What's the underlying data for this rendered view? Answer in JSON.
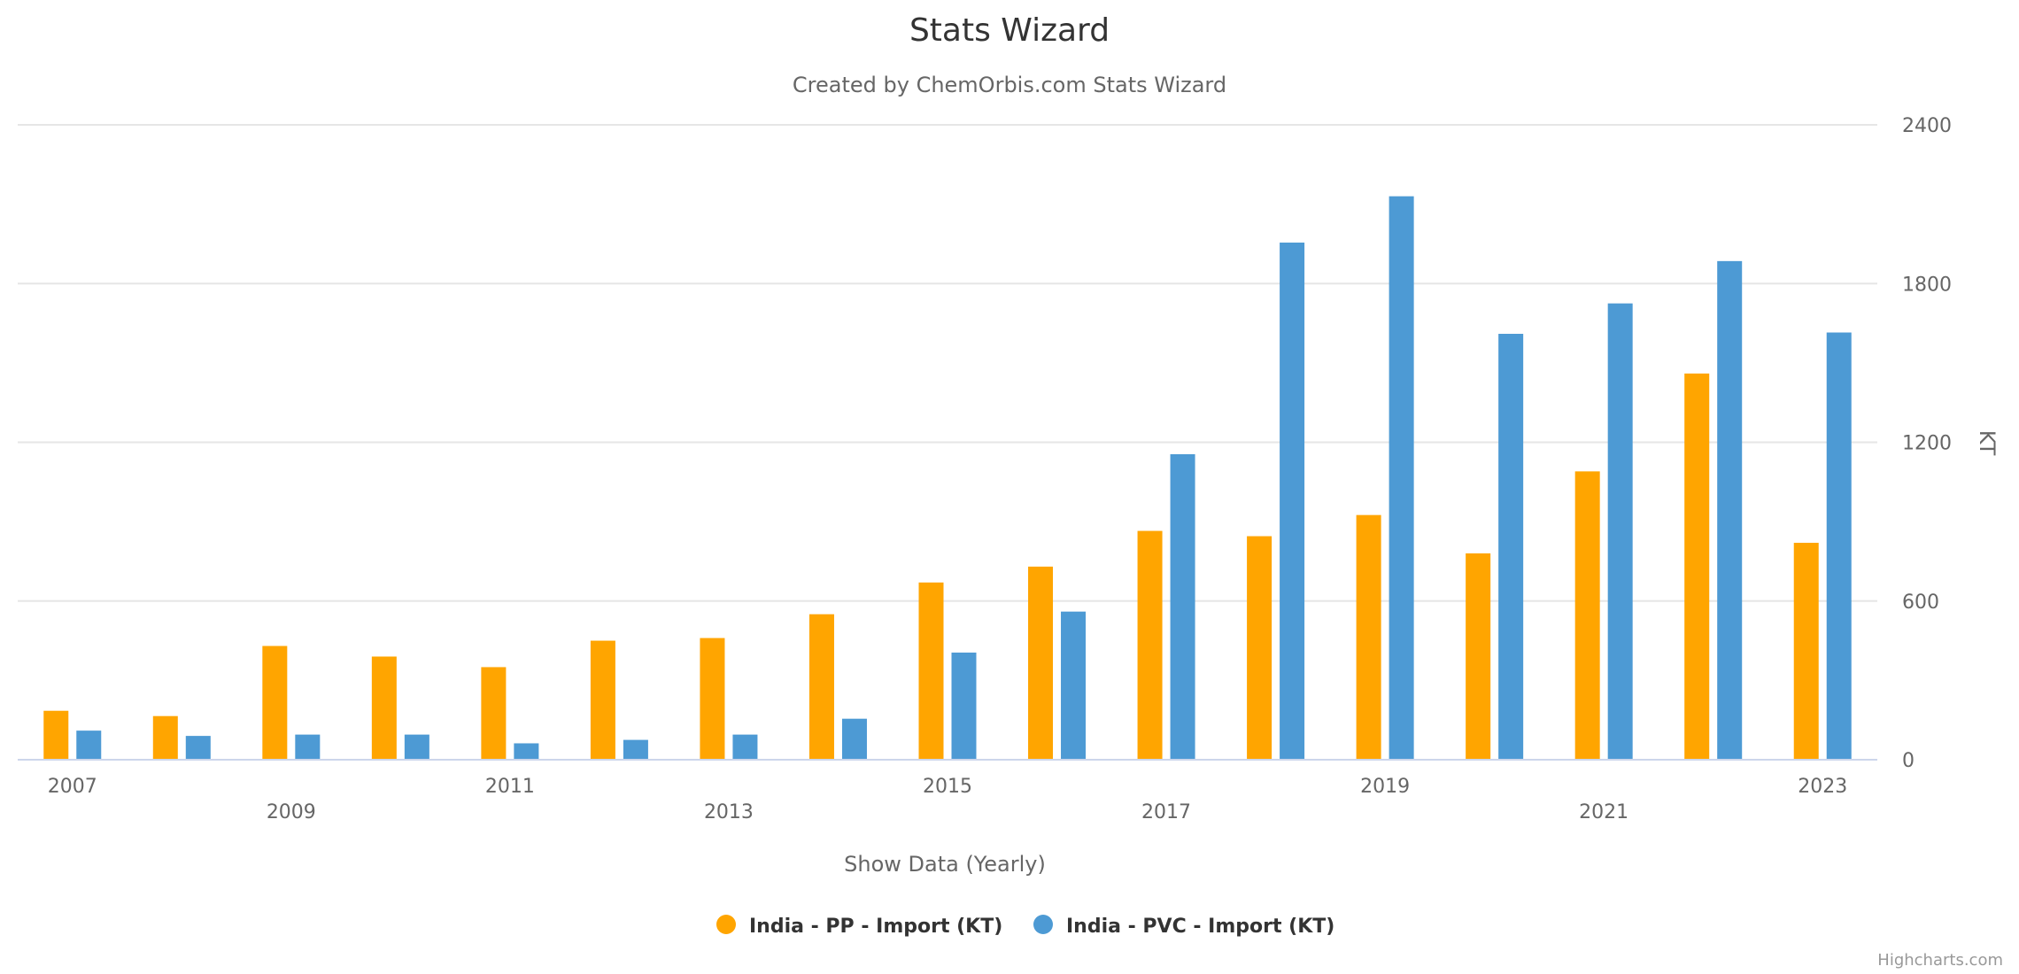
{
  "chart_data": {
    "type": "bar",
    "title": "Stats Wizard",
    "subtitle": "Created by ChemOrbis.com Stats Wizard",
    "xlabel": "Show Data (Yearly)",
    "ylabel": "KT",
    "ylim": [
      0,
      2400
    ],
    "yticks": [
      0,
      600,
      1200,
      1800,
      2400
    ],
    "grid": true,
    "legend_position": "bottom-center",
    "categories": [
      "2007",
      "2008",
      "2009",
      "2010",
      "2011",
      "2012",
      "2013",
      "2014",
      "2015",
      "2016",
      "2017",
      "2018",
      "2019",
      "2020",
      "2021",
      "2022",
      "2023"
    ],
    "category_labels": [
      "2007",
      "",
      "2009",
      "",
      "2011",
      "",
      "2013",
      "",
      "2015",
      "",
      "2017",
      "",
      "2019",
      "",
      "2021",
      "",
      "2023"
    ],
    "series": [
      {
        "name": "India - PP - Import (KT)",
        "color": "#FFA500",
        "values": [
          185,
          165,
          430,
          390,
          350,
          450,
          460,
          550,
          670,
          730,
          865,
          845,
          925,
          780,
          1090,
          1460,
          820
        ]
      },
      {
        "name": "India - PVC - Import (KT)",
        "color": "#4D9AD4",
        "values": [
          110,
          90,
          95,
          95,
          62,
          75,
          95,
          155,
          405,
          560,
          1155,
          1955,
          2130,
          1610,
          1725,
          1885,
          1615
        ]
      }
    ],
    "credits": "Highcharts.com"
  }
}
